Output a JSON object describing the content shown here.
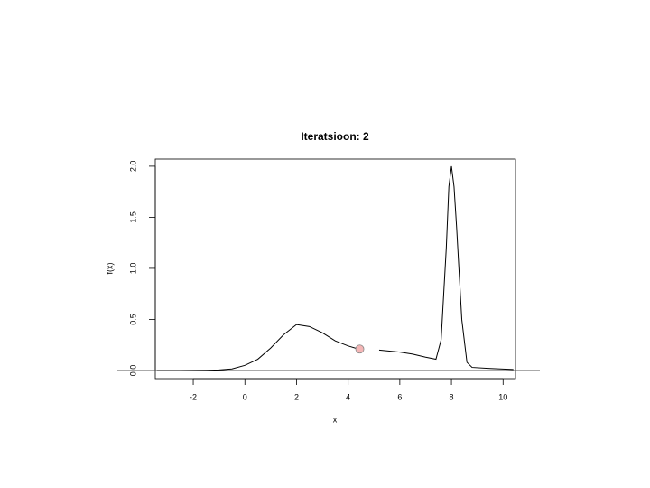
{
  "chart_data": {
    "type": "line",
    "title": "Iteratsioon: 2",
    "xlabel": "x",
    "ylabel": "f(x)",
    "x": [
      -3.4,
      -2.5,
      -2,
      -1.5,
      -1,
      -0.5,
      0,
      0.5,
      1,
      1.5,
      2,
      2.5,
      3,
      3.5,
      4,
      4.4,
      4.8,
      5.2,
      6,
      6.5,
      7,
      7.4,
      7.6,
      7.8,
      7.9,
      8.0,
      8.1,
      8.2,
      8.4,
      8.6,
      8.8,
      9.5,
      10.4
    ],
    "values": [
      0,
      0,
      0.001,
      0.002,
      0.005,
      0.015,
      0.05,
      0.11,
      0.22,
      0.35,
      0.45,
      0.43,
      0.37,
      0.29,
      0.24,
      0.21,
      null,
      0.2,
      0.18,
      0.16,
      0.13,
      0.11,
      0.3,
      1.2,
      1.8,
      2.0,
      1.8,
      1.4,
      0.5,
      0.08,
      0.03,
      0.02,
      0.01
    ],
    "color": "#000000",
    "point": {
      "x": 4.45,
      "y": 0.21,
      "color": "#f4b6b6"
    },
    "hline": 0,
    "xlim": [
      -3.47,
      10.48
    ],
    "ylim": [
      -0.08,
      2.07
    ],
    "xticks": [
      -2,
      0,
      2,
      4,
      6,
      8,
      10
    ],
    "yticks": [
      {
        "value": 0,
        "label": "0.0"
      },
      {
        "value": 0.5,
        "label": "0.5"
      },
      {
        "value": 1,
        "label": "1.0"
      },
      {
        "value": 1.5,
        "label": "1.5"
      },
      {
        "value": 2,
        "label": "2.0"
      }
    ]
  }
}
